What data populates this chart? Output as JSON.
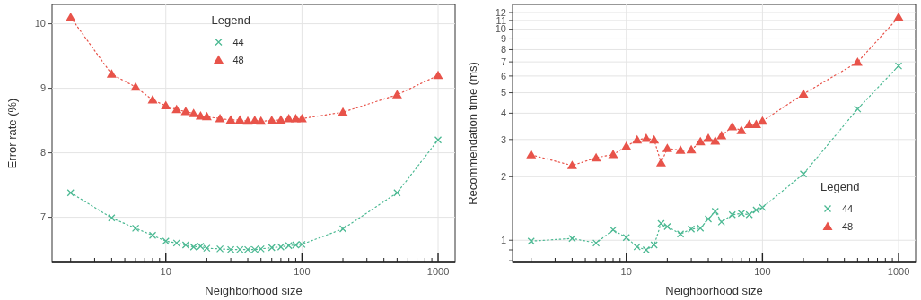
{
  "chart_data": [
    {
      "type": "line",
      "xlabel": "Neighborhood size",
      "ylabel": "Error rate (%)",
      "legend_title": "Legend",
      "legend": "top",
      "grid": true,
      "log": "x",
      "line_style": "dotted",
      "xlim": [
        1.46,
        1334
      ],
      "xticks": [
        {
          "value": 2,
          "label": null
        },
        {
          "value": 3,
          "label": null
        },
        {
          "value": 4,
          "label": null
        },
        {
          "value": 5,
          "label": null
        },
        {
          "value": 6,
          "label": null
        },
        {
          "value": 7,
          "label": null
        },
        {
          "value": 8,
          "label": null
        },
        {
          "value": 9,
          "label": null
        },
        10,
        {
          "value": 20,
          "label": null
        },
        {
          "value": 30,
          "label": null
        },
        {
          "value": 40,
          "label": null
        },
        {
          "value": 50,
          "label": null
        },
        {
          "value": 60,
          "label": null
        },
        {
          "value": 70,
          "label": null
        },
        {
          "value": 80,
          "label": null
        },
        {
          "value": 90,
          "label": null
        },
        100,
        {
          "value": 200,
          "label": null
        },
        {
          "value": 300,
          "label": null
        },
        {
          "value": 400,
          "label": null
        },
        {
          "value": 500,
          "label": null
        },
        {
          "value": 600,
          "label": null
        },
        {
          "value": 700,
          "label": null
        },
        {
          "value": 800,
          "label": null
        },
        {
          "value": 900,
          "label": null
        },
        1000
      ],
      "ylim": [
        6.3,
        10.3
      ],
      "yticks": [
        7,
        8,
        9,
        10
      ],
      "x": [
        2,
        4,
        6,
        8,
        10,
        12,
        14,
        16,
        18,
        20,
        25,
        30,
        35,
        40,
        45,
        50,
        60,
        70,
        80,
        90,
        100,
        200,
        500,
        1000
      ],
      "series": [
        {
          "name": "44",
          "color": "#4cb993",
          "marker": "cross",
          "values": [
            7.38,
            6.99,
            6.83,
            6.72,
            6.63,
            6.6,
            6.57,
            6.54,
            6.55,
            6.52,
            6.51,
            6.5,
            6.5,
            6.5,
            6.5,
            6.51,
            6.53,
            6.54,
            6.56,
            6.57,
            6.58,
            6.82,
            7.38,
            8.2
          ]
        },
        {
          "name": "48",
          "color": "#e8534a",
          "marker": "triangle",
          "values": [
            10.1,
            9.22,
            9.02,
            8.82,
            8.73,
            8.67,
            8.64,
            8.61,
            8.57,
            8.56,
            8.53,
            8.51,
            8.51,
            8.49,
            8.5,
            8.49,
            8.5,
            8.51,
            8.53,
            8.53,
            8.53,
            8.63,
            8.9,
            9.2
          ]
        }
      ]
    },
    {
      "type": "line",
      "xlabel": "Neighborhood size",
      "ylabel": "Recommendation time (ms)",
      "legend_title": "Legend",
      "legend": "bottom right",
      "grid": true,
      "log": "xy",
      "line_style": "dotted",
      "xlim": [
        1.46,
        1334
      ],
      "xticks": [
        {
          "value": 2,
          "label": null
        },
        {
          "value": 3,
          "label": null
        },
        {
          "value": 4,
          "label": null
        },
        {
          "value": 5,
          "label": null
        },
        {
          "value": 6,
          "label": null
        },
        {
          "value": 7,
          "label": null
        },
        {
          "value": 8,
          "label": null
        },
        {
          "value": 9,
          "label": null
        },
        10,
        {
          "value": 20,
          "label": null
        },
        {
          "value": 30,
          "label": null
        },
        {
          "value": 40,
          "label": null
        },
        {
          "value": 50,
          "label": null
        },
        {
          "value": 60,
          "label": null
        },
        {
          "value": 70,
          "label": null
        },
        {
          "value": 80,
          "label": null
        },
        {
          "value": 90,
          "label": null
        },
        100,
        {
          "value": 200,
          "label": null
        },
        {
          "value": 300,
          "label": null
        },
        {
          "value": 400,
          "label": null
        },
        {
          "value": 500,
          "label": null
        },
        {
          "value": 600,
          "label": null
        },
        {
          "value": 700,
          "label": null
        },
        {
          "value": 800,
          "label": null
        },
        {
          "value": 900,
          "label": null
        },
        1000
      ],
      "ylim": [
        0.785,
        13.1
      ],
      "yticks": [
        {
          "value": 0.8,
          "label": null
        },
        {
          "value": 0.9,
          "label": null
        },
        1,
        2,
        3,
        4,
        5,
        6,
        7,
        8,
        9,
        10,
        11,
        12
      ],
      "x": [
        2,
        4,
        6,
        8,
        10,
        12,
        14,
        16,
        18,
        20,
        25,
        30,
        35,
        40,
        45,
        50,
        60,
        70,
        80,
        90,
        100,
        200,
        500,
        1000
      ],
      "series": [
        {
          "name": "44",
          "color": "#4cb993",
          "marker": "cross",
          "values": [
            0.99,
            1.02,
            0.97,
            1.12,
            1.03,
            0.93,
            0.9,
            0.95,
            1.2,
            1.16,
            1.07,
            1.13,
            1.14,
            1.26,
            1.37,
            1.22,
            1.32,
            1.34,
            1.32,
            1.39,
            1.43,
            2.06,
            4.19,
            6.7
          ]
        },
        {
          "name": "48",
          "color": "#e8534a",
          "marker": "triangle",
          "values": [
            2.54,
            2.26,
            2.46,
            2.55,
            2.78,
            2.99,
            3.04,
            2.99,
            2.33,
            2.72,
            2.67,
            2.68,
            2.93,
            3.04,
            2.95,
            3.13,
            3.45,
            3.31,
            3.54,
            3.54,
            3.67,
            4.93,
            6.98,
            11.4
          ]
        }
      ]
    }
  ]
}
